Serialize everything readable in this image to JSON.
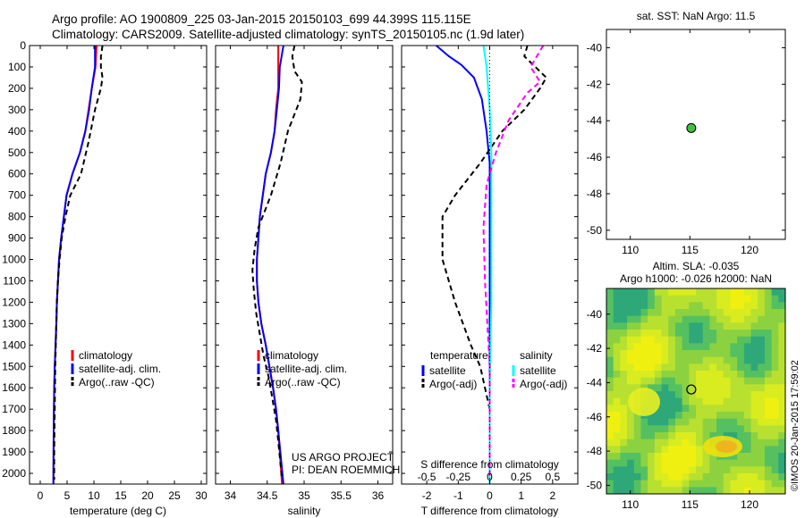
{
  "header": {
    "line1": "Argo profile: AO 1900809_225 03-Jan-2015 20150103_699 44.399S 115.115E",
    "line2": "Climatology: CARS2009. Satellite-adjusted climatology: synTS_20150105.nc (1.9d later)"
  },
  "colors": {
    "red": "#ff0000",
    "blue": "#0000ff",
    "black": "#000000",
    "cyan": "#00ffff",
    "magenta": "#ff00ff",
    "marker": "#40c040"
  },
  "chart_data": [
    {
      "id": "temperature-profile",
      "type": "line",
      "xlabel": "temperature (deg C)",
      "ylabel": "",
      "xlim": [
        -2,
        31
      ],
      "ylim": [
        0,
        2050
      ],
      "xticks": [
        0,
        5,
        10,
        15,
        20,
        25,
        30
      ],
      "yticks": [
        0,
        100,
        200,
        300,
        400,
        500,
        600,
        700,
        800,
        900,
        1000,
        1100,
        1200,
        1300,
        1400,
        1500,
        1600,
        1700,
        1800,
        1900,
        2000
      ],
      "legend": [
        "climatology",
        "satellite-adj. clim.",
        "Argo(..raw -QC)"
      ],
      "series": [
        {
          "name": "climatology",
          "color": "#ff0000",
          "dash": "",
          "x": [
            10.5,
            10.3,
            9.6,
            9.0,
            8.4,
            7.4,
            6.0,
            4.9,
            4.4,
            3.9,
            3.5,
            3.3,
            3.1,
            3.0,
            2.85,
            2.7,
            2.6,
            2.55,
            2.5,
            2.45
          ],
          "y": [
            0,
            100,
            200,
            300,
            400,
            500,
            600,
            700,
            800,
            900,
            1000,
            1100,
            1200,
            1300,
            1400,
            1500,
            1600,
            1700,
            1800,
            2050
          ]
        },
        {
          "name": "satellite-adj. clim.",
          "color": "#0000ff",
          "dash": "",
          "x": [
            10.2,
            10.2,
            9.6,
            9.1,
            8.4,
            7.4,
            6.0,
            4.9,
            4.4,
            3.9,
            3.5,
            3.3,
            3.1,
            3.0,
            2.85,
            2.7,
            2.6,
            2.55,
            2.5,
            2.45
          ],
          "y": [
            0,
            100,
            200,
            300,
            400,
            500,
            600,
            700,
            800,
            900,
            1000,
            1100,
            1200,
            1300,
            1400,
            1500,
            1600,
            1700,
            1800,
            2050
          ]
        },
        {
          "name": "Argo(..raw -QC)",
          "color": "#000000",
          "dash": "6,4",
          "x": [
            11.6,
            11.3,
            11.3,
            11.6,
            11.3,
            10.2,
            9.0,
            7.6,
            5.6,
            4.7,
            4.0,
            3.6,
            3.3,
            3.1,
            3.0,
            2.9,
            2.8,
            2.75,
            2.7,
            2.65,
            2.6,
            2.6
          ],
          "y": [
            0,
            50,
            100,
            150,
            200,
            300,
            450,
            600,
            700,
            800,
            900,
            1000,
            1100,
            1200,
            1300,
            1400,
            1500,
            1600,
            1700,
            1800,
            1900,
            2030
          ]
        }
      ]
    },
    {
      "id": "salinity-profile",
      "type": "line",
      "xlabel": "salinity",
      "ylabel": "",
      "xlim": [
        33.8,
        36.2
      ],
      "ylim": [
        0,
        2050
      ],
      "xticks": [
        34,
        34.5,
        35,
        35.5,
        36
      ],
      "legend": [
        "climatology",
        "satellite-adj. clim.",
        "Argo(..raw -QC)"
      ],
      "annotations": [
        "US ARGO PROJECT",
        "PI: DEAN ROEMMICH"
      ],
      "series": [
        {
          "name": "climatology",
          "color": "#ff0000",
          "dash": "",
          "x": [
            34.65,
            34.65,
            34.65,
            34.62,
            34.6,
            34.55,
            34.48,
            34.44,
            34.4,
            34.38,
            34.36,
            34.36,
            34.38,
            34.42,
            34.48,
            34.53,
            34.58,
            34.62,
            34.65,
            34.7
          ],
          "y": [
            0,
            100,
            200,
            300,
            400,
            500,
            600,
            700,
            800,
            900,
            1000,
            1100,
            1200,
            1300,
            1400,
            1500,
            1600,
            1700,
            1800,
            2050
          ]
        },
        {
          "name": "satellite-adj. clim.",
          "color": "#0000ff",
          "dash": "",
          "x": [
            34.72,
            34.67,
            34.66,
            34.63,
            34.6,
            34.55,
            34.48,
            34.44,
            34.4,
            34.38,
            34.36,
            34.36,
            34.38,
            34.42,
            34.48,
            34.53,
            34.58,
            34.62,
            34.65,
            34.72
          ],
          "y": [
            0,
            100,
            200,
            300,
            400,
            500,
            600,
            700,
            800,
            900,
            1000,
            1100,
            1200,
            1300,
            1400,
            1500,
            1600,
            1700,
            1800,
            2050
          ]
        },
        {
          "name": "Argo(..raw -QC)",
          "color": "#000000",
          "dash": "6,4",
          "x": [
            34.87,
            34.84,
            34.87,
            34.97,
            34.95,
            34.78,
            34.68,
            34.55,
            34.38,
            34.33,
            34.3,
            34.32,
            34.35,
            34.4,
            34.45,
            34.52,
            34.57,
            34.62,
            34.65,
            34.7
          ],
          "y": [
            0,
            50,
            120,
            170,
            250,
            400,
            550,
            700,
            850,
            950,
            1050,
            1150,
            1250,
            1350,
            1450,
            1550,
            1650,
            1750,
            1850,
            2030
          ]
        }
      ]
    },
    {
      "id": "difference-profile",
      "type": "line",
      "xlabel": "T difference from climatology",
      "xlabel_top": "S difference from climatology",
      "xlim": [
        -2.8,
        2.8
      ],
      "ylim": [
        0,
        2050
      ],
      "xticks": [
        -2,
        -1,
        0,
        1,
        2
      ],
      "s_ticks": [
        "-0.5",
        "-0.25",
        "0",
        "0.25",
        "0.5"
      ],
      "legend_titles": [
        "temperature",
        "salinity"
      ],
      "legend_temperature": [
        "satellite",
        "Argo(-adj)"
      ],
      "legend_salinity": [
        "satellite",
        "Argo(-adj)"
      ],
      "series": [
        {
          "name": "temperature satellite",
          "color": "#0000ff",
          "dash": "",
          "x": [
            -1.7,
            -1.3,
            -0.9,
            -0.5,
            -0.25,
            -0.1,
            0,
            0,
            0,
            0,
            0
          ],
          "y": [
            0,
            50,
            90,
            150,
            250,
            400,
            550,
            700,
            1000,
            1500,
            2050
          ]
        },
        {
          "name": "temperature Argo(-adj)",
          "color": "#000000",
          "dash": "6,4",
          "x": [
            1.2,
            1.1,
            1.8,
            1.6,
            1.1,
            0.4,
            -0.3,
            -1.1,
            -1.5,
            -1.5,
            -1.1,
            -0.6,
            -0.3,
            0,
            0
          ],
          "y": [
            0,
            50,
            150,
            200,
            300,
            400,
            550,
            700,
            800,
            1000,
            1200,
            1400,
            1500,
            1700,
            2030
          ]
        },
        {
          "name": "salinity satellite",
          "color": "#00ffff",
          "dash": "",
          "x": [
            -0.2,
            -0.1,
            0,
            0.05,
            0.05,
            0.05,
            0,
            0
          ],
          "y": [
            0,
            100,
            300,
            500,
            800,
            1200,
            1600,
            2050
          ]
        },
        {
          "name": "salinity Argo(-adj)",
          "color": "#ff00ff",
          "dash": "6,4",
          "x": [
            1.7,
            1.3,
            1.6,
            1.2,
            0.6,
            0.2,
            -0.1,
            -0.2,
            -0.15,
            0,
            0
          ],
          "y": [
            0,
            100,
            170,
            220,
            350,
            500,
            650,
            850,
            1100,
            1500,
            2030
          ]
        }
      ]
    },
    {
      "id": "sst-map",
      "type": "scatter",
      "title": "sat. SST: NaN Argo: 11.5",
      "xlim": [
        108,
        123
      ],
      "ylim": [
        -50.5,
        -39
      ],
      "xticks": [
        110,
        115,
        120
      ],
      "yticks": [
        -40,
        -42,
        -44,
        -46,
        -48,
        -50
      ],
      "points": [
        {
          "x": 115.115,
          "y": -44.399
        }
      ]
    },
    {
      "id": "sla-map",
      "type": "heatmap",
      "title_line1": "Altim. SLA: -0.035",
      "title_line2": "Argo h1000: -0.026 h2000: NaN",
      "xlim": [
        108,
        123
      ],
      "ylim": [
        -50.5,
        -38.5
      ],
      "xticks": [
        110,
        115,
        120
      ],
      "yticks": [
        -40,
        -42,
        -44,
        -46,
        -48,
        -50
      ],
      "points": [
        {
          "x": 115.115,
          "y": -44.399
        }
      ]
    }
  ],
  "watermark": "©IMOS 20-Jan-2015 17:59:02"
}
